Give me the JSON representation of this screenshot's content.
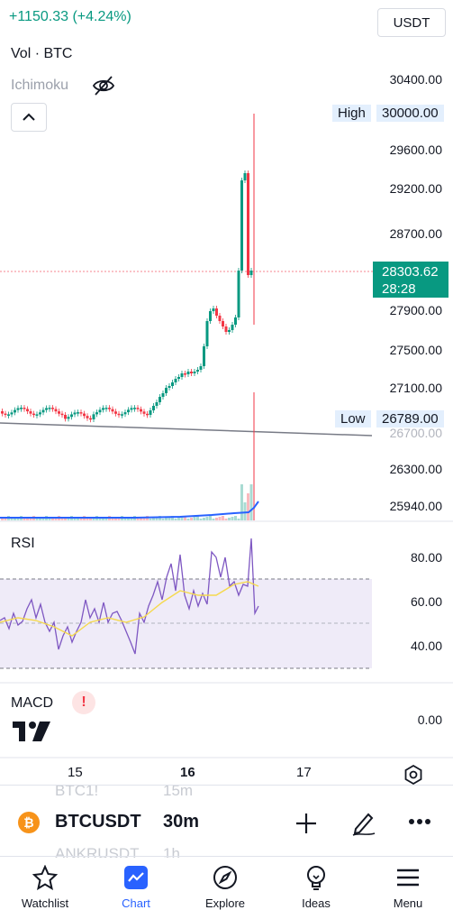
{
  "header": {
    "change": "+1150.33 (+4.24%)",
    "quote_currency": "USDT"
  },
  "legend": {
    "volume_label": "Vol · BTC",
    "ichimoku_label": "Ichimoku"
  },
  "price_axis": {
    "ticks": [
      "30400.00",
      "29600.00",
      "29200.00",
      "28700.00",
      "27900.00",
      "27500.00",
      "27100.00",
      "26300.00",
      "25940.00"
    ],
    "high_label": "High",
    "high_value": "30000.00",
    "low_label": "Low",
    "low_value": "26789.00",
    "partial_tick": "26700.00",
    "current_price": "28303.62",
    "countdown": "28:28"
  },
  "rsi": {
    "label": "RSI",
    "ticks": [
      "80.00",
      "60.00",
      "40.00"
    ]
  },
  "macd": {
    "label": "MACD",
    "warning": "!",
    "tick": "0.00"
  },
  "time_axis": {
    "ticks": [
      "15",
      "16",
      "17"
    ]
  },
  "symbol_bar": {
    "coin_glyph": "₿",
    "symbol": "BTCUSDT",
    "interval": "30m",
    "ghost_above_symbol": "BTC1!",
    "ghost_above_interval": "15m",
    "ghost_below_symbol": "ANKRUSDT",
    "ghost_below_interval": "1h"
  },
  "bottom_nav": {
    "items": [
      "Watchlist",
      "Chart",
      "Explore",
      "Ideas",
      "Menu"
    ]
  },
  "colors": {
    "up": "#089981",
    "down": "#f23645",
    "rsi_line": "#7e57c2",
    "rsi_ma": "#f5d94e",
    "volume_ma": "#2962ff",
    "accent": "#2962ff"
  }
}
